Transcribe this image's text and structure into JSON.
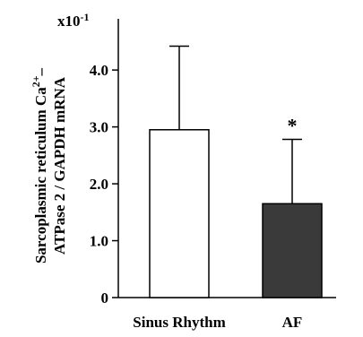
{
  "chart_data": {
    "type": "bar",
    "categories": [
      "Sinus Rhythm",
      "AF"
    ],
    "values": [
      2.95,
      1.65
    ],
    "error_upper": [
      4.42,
      2.78
    ],
    "bar_colors": [
      "#ffffff",
      "#3a3a3a"
    ],
    "annotations": [
      "",
      "*"
    ],
    "ylim": [
      0,
      4.9
    ],
    "yticks": [
      0,
      1.0,
      2.0,
      3.0,
      4.0
    ],
    "ytick_labels": [
      "0",
      "1.0",
      "2.0",
      "3.0",
      "4.0"
    ],
    "yscale_label": "x10",
    "yscale_exponent": "-1",
    "ylabel_line1_prefix": "Sarcoplasmic reticulum Ca",
    "ylabel_line1_sup": "2+",
    "ylabel_line1_suffix": "–",
    "ylabel_line2": "ATPase 2 / GAPDH mRNA",
    "xlabel": "",
    "grid": false,
    "legend": "none"
  }
}
